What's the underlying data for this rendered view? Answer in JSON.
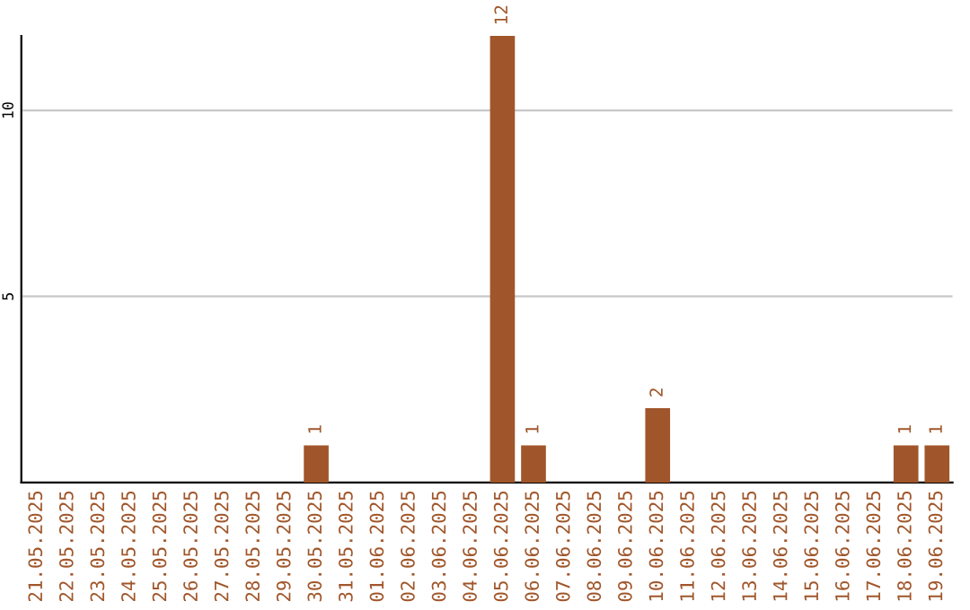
{
  "chart_data": {
    "type": "bar",
    "categories": [
      "21.05.2025",
      "22.05.2025",
      "23.05.2025",
      "24.05.2025",
      "25.05.2025",
      "26.05.2025",
      "27.05.2025",
      "28.05.2025",
      "29.05.2025",
      "30.05.2025",
      "31.05.2025",
      "01.06.2025",
      "02.06.2025",
      "03.06.2025",
      "04.06.2025",
      "05.06.2025",
      "06.06.2025",
      "07.06.2025",
      "08.06.2025",
      "09.06.2025",
      "10.06.2025",
      "11.06.2025",
      "12.06.2025",
      "13.06.2025",
      "14.06.2025",
      "15.06.2025",
      "16.06.2025",
      "17.06.2025",
      "18.06.2025",
      "19.06.2025"
    ],
    "values": [
      0,
      0,
      0,
      0,
      0,
      0,
      0,
      0,
      0,
      1,
      0,
      0,
      0,
      0,
      0,
      12,
      1,
      0,
      0,
      0,
      2,
      0,
      0,
      0,
      0,
      0,
      0,
      0,
      1,
      1
    ],
    "value_labels": [
      null,
      null,
      null,
      null,
      null,
      null,
      null,
      null,
      null,
      "1",
      null,
      null,
      null,
      null,
      null,
      "12",
      "1",
      null,
      null,
      null,
      "2",
      null,
      null,
      null,
      null,
      null,
      null,
      null,
      "1",
      "1"
    ],
    "color": "#a0562a",
    "ylim": [
      0,
      12
    ],
    "yticks": [
      5,
      10
    ],
    "grid": "y",
    "legend": false
  }
}
